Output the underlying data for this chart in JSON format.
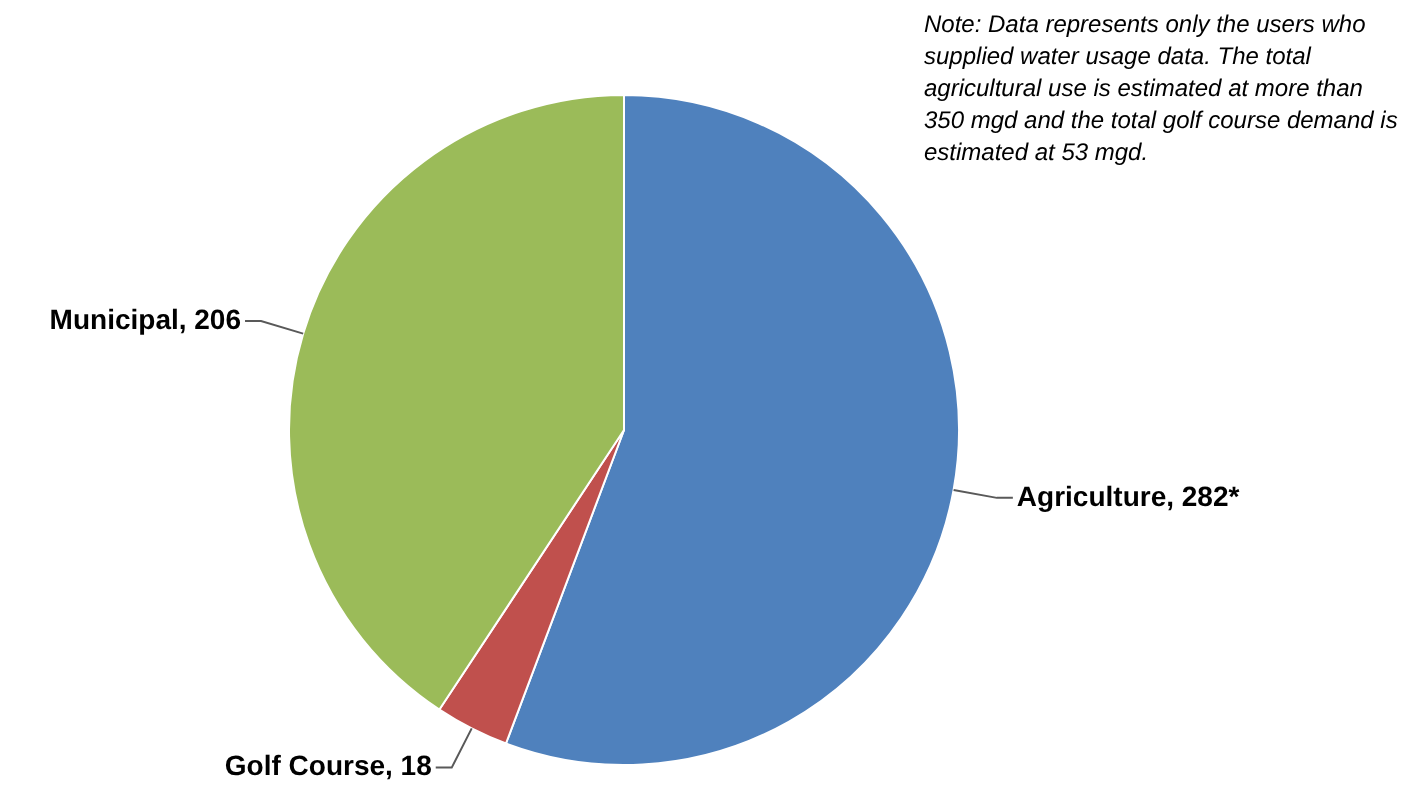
{
  "chart_data": {
    "type": "pie",
    "categories": [
      "Agriculture",
      "Golf Course",
      "Municipal"
    ],
    "values": [
      282,
      18,
      206
    ],
    "colors": [
      "#4f81bd",
      "#c0504d",
      "#9bbb59"
    ],
    "value_labels": [
      "282*",
      "18",
      "206"
    ],
    "legend": false,
    "annotations": [
      "Note: Data represents only the users who supplied water usage data. The total agricultural use is estimated at more than 350 mgd and the total golf course demand is estimated at 53 mgd."
    ]
  }
}
